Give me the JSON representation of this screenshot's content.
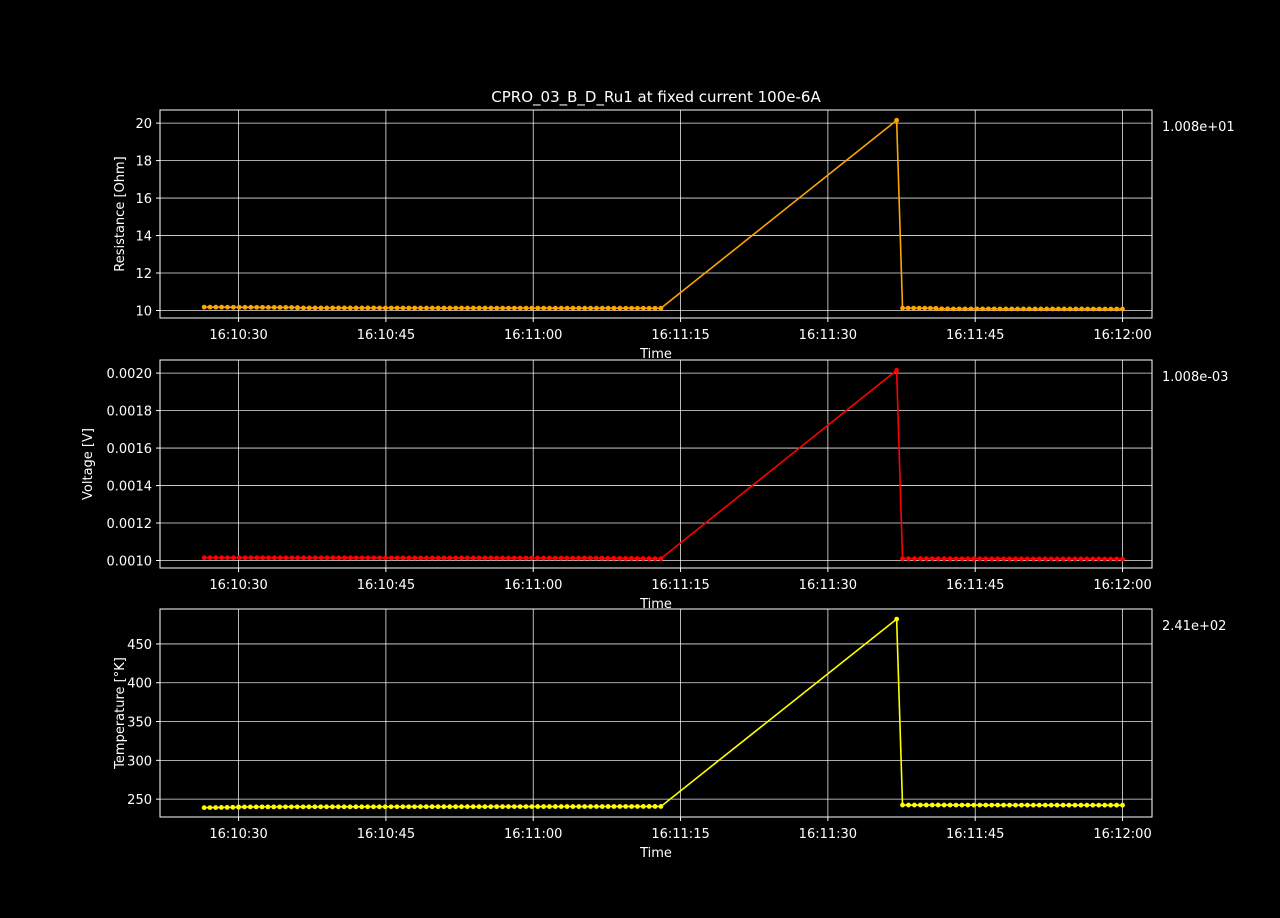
{
  "chart_data": [
    {
      "type": "line",
      "title": "CPRO_03_B_D_Ru1 at fixed current 100e-6A",
      "xlabel": "Time",
      "ylabel": "Resistance [Ohm]",
      "offset_label": "1.008e+01",
      "color": "#ffa500",
      "marker": "dot",
      "grid": true,
      "x_range": [
        "16:10:22",
        "16:12:03"
      ],
      "x_ticks": [
        "16:10:30",
        "16:10:45",
        "16:11:00",
        "16:11:15",
        "16:11:30",
        "16:11:45",
        "16:12:00"
      ],
      "ylim": [
        9.6,
        20.7
      ],
      "y_ticks": [
        10,
        12,
        14,
        16,
        18,
        20
      ],
      "series": [
        {
          "segments": [
            {
              "from": "16:10:26.5",
              "to": "16:10:36",
              "step": 0.6,
              "y0": 10.18,
              "y1": 10.16
            },
            {
              "from": "16:10:36",
              "to": "16:11:13",
              "step": 0.6,
              "y0": 10.14,
              "y1": 10.12
            },
            {
              "from": "16:11:37",
              "to": "16:11:37",
              "step": 1,
              "y0": 20.15,
              "y1": 20.15
            },
            {
              "from": "16:11:37.6",
              "to": "16:11:41",
              "step": 0.6,
              "y0": 10.13,
              "y1": 10.12
            },
            {
              "from": "16:11:41",
              "to": "16:12:00",
              "step": 0.6,
              "y0": 10.09,
              "y1": 10.08
            }
          ]
        }
      ]
    },
    {
      "type": "line",
      "title": "",
      "xlabel": "Time",
      "ylabel": "Voltage [V]",
      "offset_label": "1.008e-03",
      "color": "#ff0000",
      "marker": "dot",
      "grid": true,
      "x_range": [
        "16:10:22",
        "16:12:03"
      ],
      "x_ticks": [
        "16:10:30",
        "16:10:45",
        "16:11:00",
        "16:11:15",
        "16:11:30",
        "16:11:45",
        "16:12:00"
      ],
      "ylim": [
        0.00096,
        0.00207
      ],
      "y_ticks": [
        0.001,
        0.0012,
        0.0014,
        0.0016,
        0.0018,
        0.002
      ],
      "y_tick_labels": [
        "0.0010",
        "0.0012",
        "0.0014",
        "0.0016",
        "0.0018",
        "0.0020"
      ],
      "series": [
        {
          "segments": [
            {
              "from": "16:10:26.5",
              "to": "16:11:07",
              "step": 0.6,
              "y0": 0.001015,
              "y1": 0.001013
            },
            {
              "from": "16:11:07",
              "to": "16:11:13",
              "step": 0.6,
              "y0": 0.001012,
              "y1": 0.00101
            },
            {
              "from": "16:11:37",
              "to": "16:11:37",
              "step": 1,
              "y0": 0.002015,
              "y1": 0.002015
            },
            {
              "from": "16:11:37.6",
              "to": "16:12:00",
              "step": 0.6,
              "y0": 0.00101,
              "y1": 0.001008
            }
          ]
        }
      ]
    },
    {
      "type": "line",
      "title": "",
      "xlabel": "Time",
      "ylabel": "Temperature [°K]",
      "offset_label": "2.41e+02",
      "color": "#ffff00",
      "marker": "dot",
      "grid": true,
      "x_range": [
        "16:10:22",
        "16:12:03"
      ],
      "x_ticks": [
        "16:10:30",
        "16:10:45",
        "16:11:00",
        "16:11:15",
        "16:11:30",
        "16:11:45",
        "16:12:00"
      ],
      "ylim": [
        227,
        495
      ],
      "y_ticks": [
        250,
        300,
        350,
        400,
        450
      ],
      "series": [
        {
          "segments": [
            {
              "from": "16:10:26.5",
              "to": "16:10:30",
              "step": 0.6,
              "y0": 239.0,
              "y1": 239.6
            },
            {
              "from": "16:10:30",
              "to": "16:11:13",
              "step": 0.6,
              "y0": 240.0,
              "y1": 240.6
            },
            {
              "from": "16:11:37",
              "to": "16:11:37",
              "step": 1,
              "y0": 482,
              "y1": 482
            },
            {
              "from": "16:11:37.6",
              "to": "16:12:00",
              "step": 0.6,
              "y0": 242.4,
              "y1": 242.2
            }
          ]
        }
      ]
    }
  ]
}
